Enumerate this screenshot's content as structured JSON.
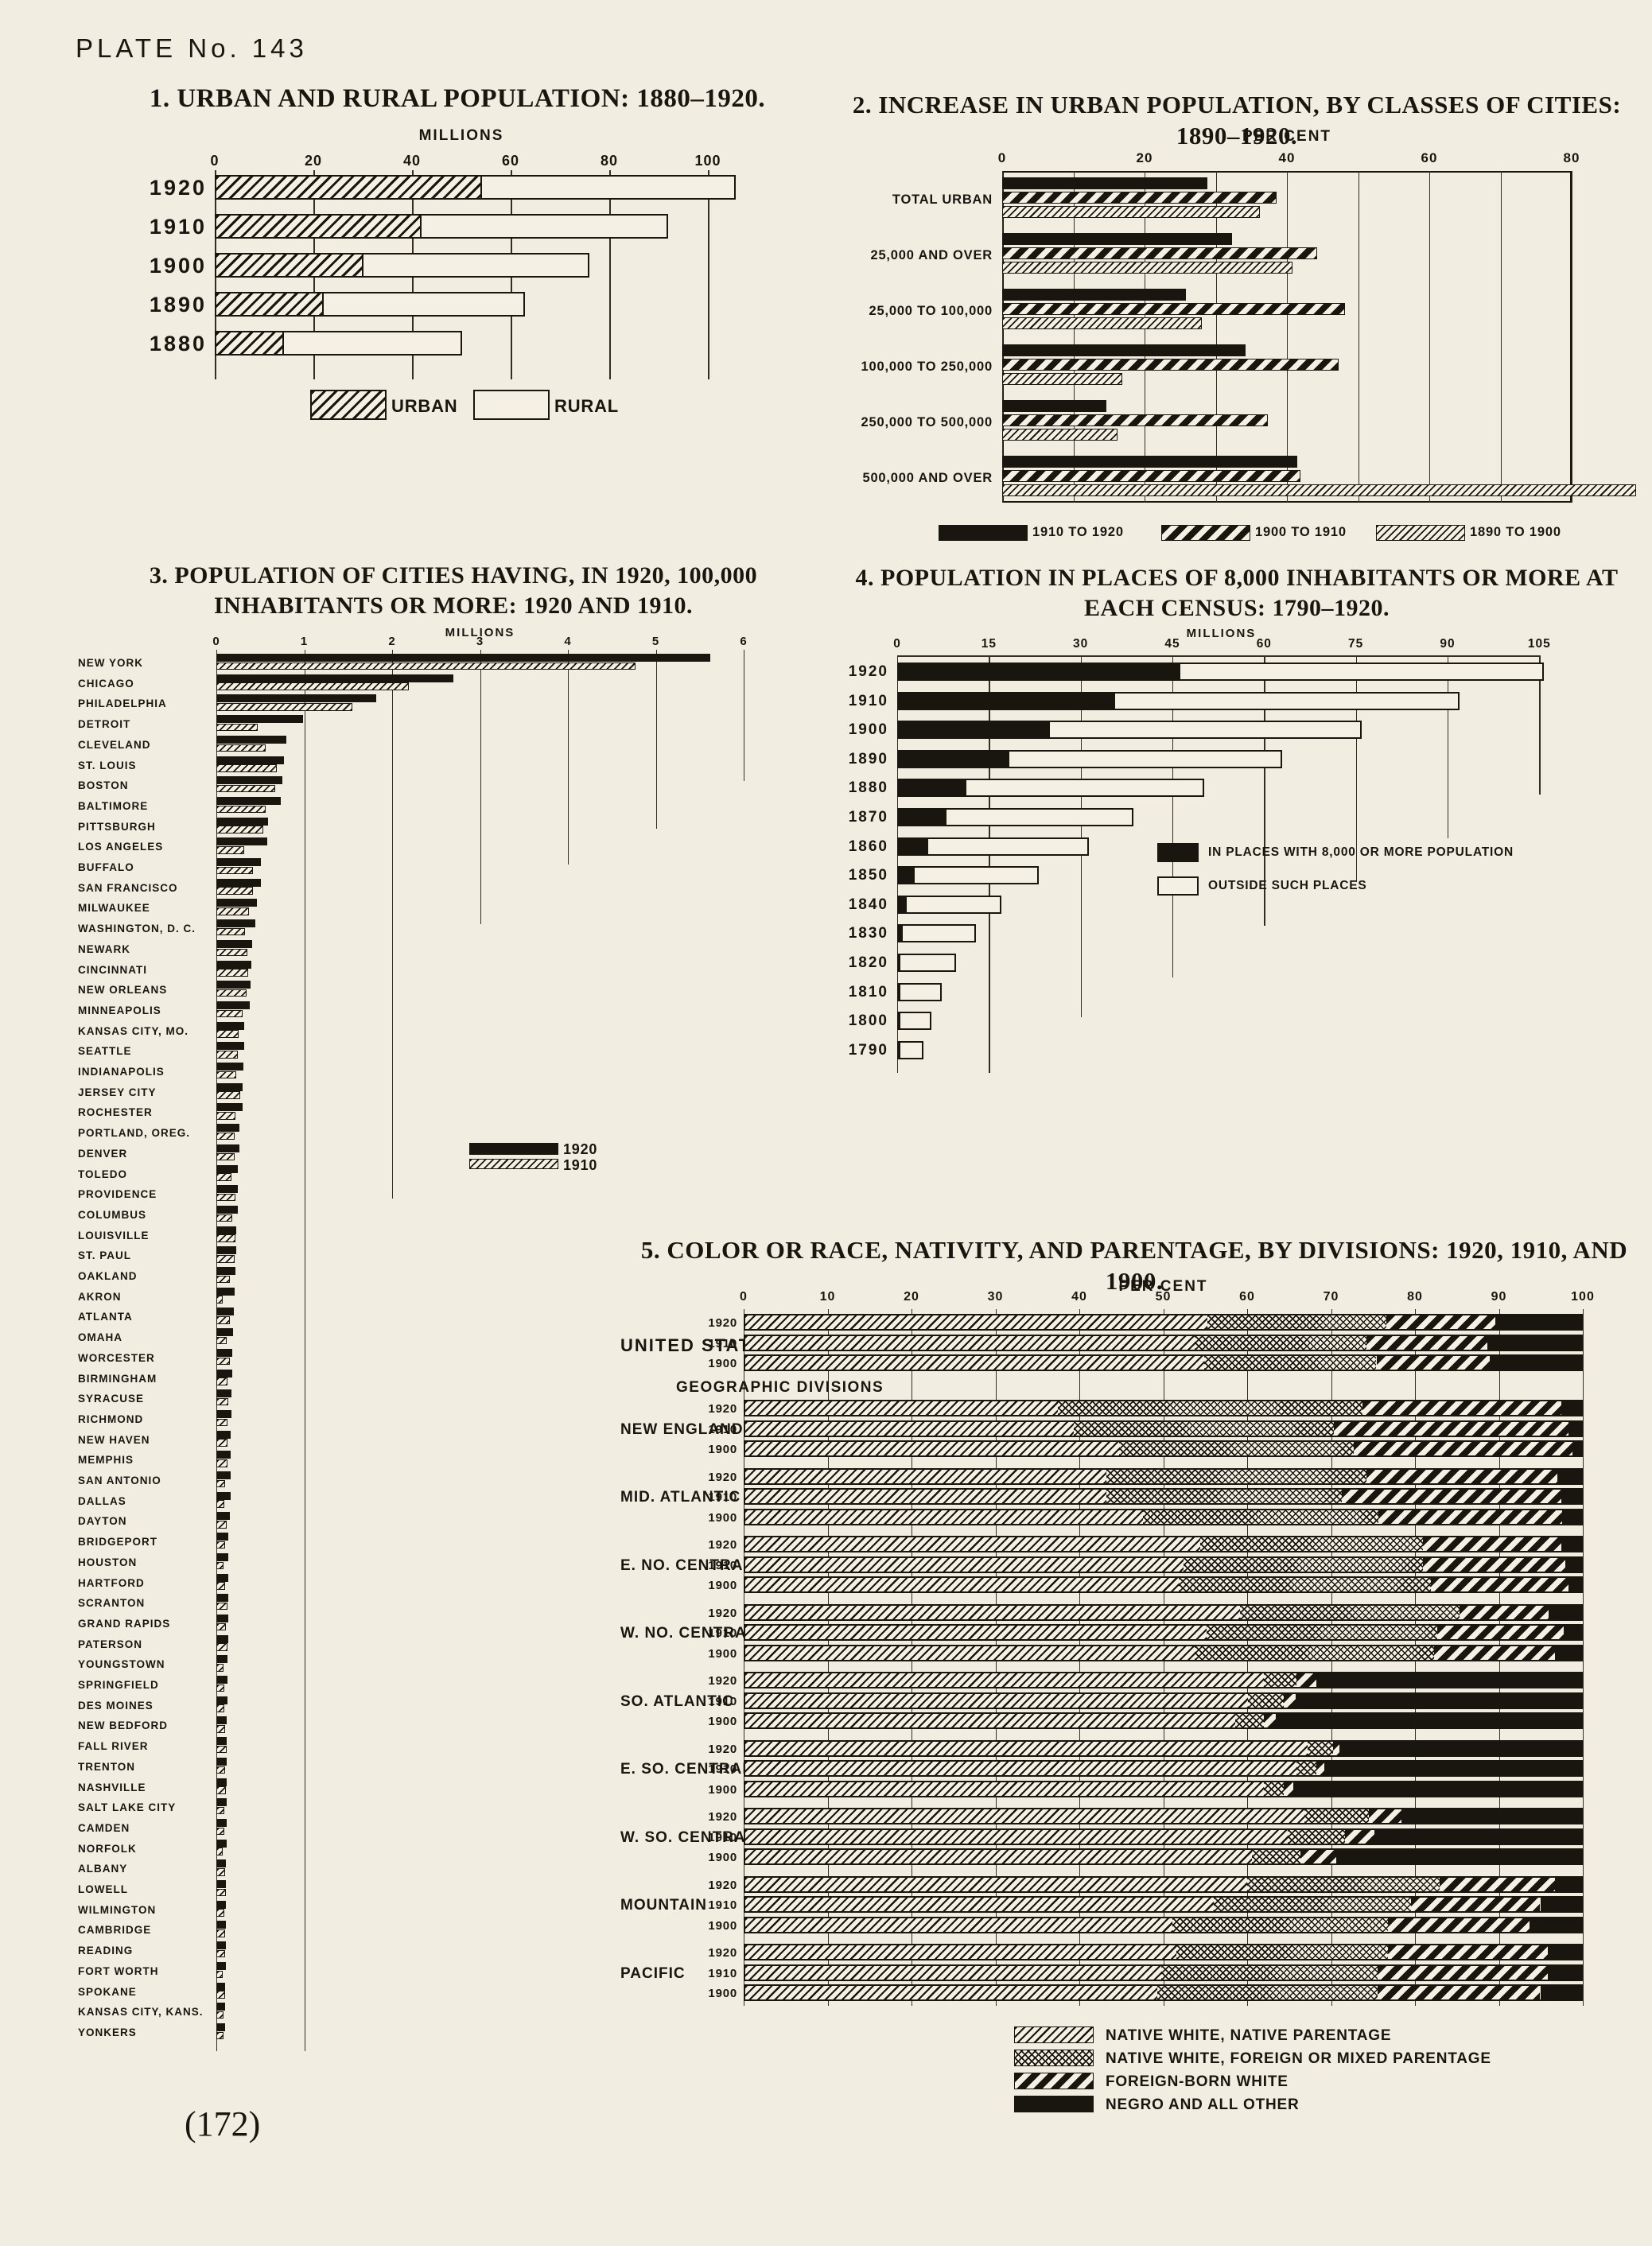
{
  "page": {
    "plate_label": "PLATE No. 143",
    "page_number": "(172)",
    "paper_color": "#f1eee1",
    "ink_color": "#19150f"
  },
  "chart_data": [
    {
      "id": "urban-rural-population",
      "type": "bar",
      "stacked": true,
      "title": "1. URBAN AND RURAL POPULATION: 1880–1920.",
      "axis_title": "MILLIONS",
      "xlim": [
        0,
        106
      ],
      "ticks": [
        0,
        20,
        40,
        60,
        80,
        100
      ],
      "categories": [
        "1920",
        "1910",
        "1900",
        "1890",
        "1880"
      ],
      "series": [
        {
          "name": "URBAN",
          "pattern": "hatch",
          "values": [
            54.2,
            42.0,
            30.2,
            22.1,
            14.1
          ]
        },
        {
          "name": "RURAL",
          "pattern": "open",
          "values": [
            51.5,
            50.0,
            45.8,
            40.8,
            36.0
          ]
        }
      ],
      "legend": [
        {
          "label": "URBAN",
          "pattern": "hatch"
        },
        {
          "label": "RURAL",
          "pattern": "open"
        }
      ]
    },
    {
      "id": "urban-increase-by-city-class",
      "type": "bar",
      "grouped": true,
      "title": "2. INCREASE IN URBAN POPULATION, BY CLASSES OF CITIES: 1890–1920.",
      "axis_title": "PER CENT",
      "xlim": [
        0,
        80
      ],
      "ticks": [
        0,
        20,
        40,
        60,
        80
      ],
      "minor_tick_step": 10,
      "categories": [
        "TOTAL URBAN",
        "25,000 AND OVER",
        "25,000 TO 100,000",
        "100,000 TO 250,000",
        "250,000 TO 500,000",
        "500,000 AND OVER"
      ],
      "series": [
        {
          "name": "1910 TO 1920",
          "pattern": "solid",
          "values": [
            28.8,
            32.3,
            25.8,
            34.2,
            14.6,
            41.5
          ]
        },
        {
          "name": "1900 TO 1910",
          "pattern": "stripe",
          "values": [
            38.5,
            44.2,
            48.2,
            47.3,
            37.3,
            41.9
          ]
        },
        {
          "name": "1890 TO 1900",
          "pattern": "fine",
          "values": [
            36.2,
            40.8,
            28.0,
            16.9,
            16.2,
            89.0
          ]
        }
      ],
      "legend": [
        {
          "label": "1910 TO 1920",
          "pattern": "solid"
        },
        {
          "label": "1900 TO 1910",
          "pattern": "stripe"
        },
        {
          "label": "1890 TO 1900",
          "pattern": "fine"
        }
      ]
    },
    {
      "id": "cities-100000-population",
      "type": "bar",
      "grouped": true,
      "title": "3. POPULATION OF CITIES HAVING, IN 1920, 100,000 INHABITANTS OR MORE: 1920 AND 1910.",
      "axis_title": "MILLIONS",
      "xlim": [
        0,
        6
      ],
      "ticks": [
        0,
        1,
        2,
        3,
        4,
        5,
        6
      ],
      "legend": [
        {
          "label": "1920",
          "pattern": "solid"
        },
        {
          "label": "1910",
          "pattern": "fine"
        }
      ],
      "cities": [
        {
          "name": "NEW YORK",
          "y1920": 5.62,
          "y1910": 4.77
        },
        {
          "name": "CHICAGO",
          "y1920": 2.7,
          "y1910": 2.19
        },
        {
          "name": "PHILADELPHIA",
          "y1920": 1.82,
          "y1910": 1.55
        },
        {
          "name": "DETROIT",
          "y1920": 0.99,
          "y1910": 0.47
        },
        {
          "name": "CLEVELAND",
          "y1920": 0.8,
          "y1910": 0.56
        },
        {
          "name": "ST. LOUIS",
          "y1920": 0.77,
          "y1910": 0.69
        },
        {
          "name": "BOSTON",
          "y1920": 0.75,
          "y1910": 0.67
        },
        {
          "name": "BALTIMORE",
          "y1920": 0.73,
          "y1910": 0.56
        },
        {
          "name": "PITTSBURGH",
          "y1920": 0.59,
          "y1910": 0.53
        },
        {
          "name": "LOS ANGELES",
          "y1920": 0.58,
          "y1910": 0.32
        },
        {
          "name": "BUFFALO",
          "y1920": 0.51,
          "y1910": 0.42
        },
        {
          "name": "SAN FRANCISCO",
          "y1920": 0.51,
          "y1910": 0.42
        },
        {
          "name": "MILWAUKEE",
          "y1920": 0.46,
          "y1910": 0.37
        },
        {
          "name": "WASHINGTON, D. C.",
          "y1920": 0.44,
          "y1910": 0.33
        },
        {
          "name": "NEWARK",
          "y1920": 0.41,
          "y1910": 0.35
        },
        {
          "name": "CINCINNATI",
          "y1920": 0.4,
          "y1910": 0.36
        },
        {
          "name": "NEW ORLEANS",
          "y1920": 0.39,
          "y1910": 0.34
        },
        {
          "name": "MINNEAPOLIS",
          "y1920": 0.38,
          "y1910": 0.3
        },
        {
          "name": "KANSAS CITY, MO.",
          "y1920": 0.32,
          "y1910": 0.25
        },
        {
          "name": "SEATTLE",
          "y1920": 0.32,
          "y1910": 0.24
        },
        {
          "name": "INDIANAPOLIS",
          "y1920": 0.31,
          "y1910": 0.23
        },
        {
          "name": "JERSEY CITY",
          "y1920": 0.3,
          "y1910": 0.27
        },
        {
          "name": "ROCHESTER",
          "y1920": 0.3,
          "y1910": 0.22
        },
        {
          "name": "PORTLAND, OREG.",
          "y1920": 0.26,
          "y1910": 0.21
        },
        {
          "name": "DENVER",
          "y1920": 0.26,
          "y1910": 0.21
        },
        {
          "name": "TOLEDO",
          "y1920": 0.24,
          "y1910": 0.17
        },
        {
          "name": "PROVIDENCE",
          "y1920": 0.24,
          "y1910": 0.22
        },
        {
          "name": "COLUMBUS",
          "y1920": 0.24,
          "y1910": 0.18
        },
        {
          "name": "LOUISVILLE",
          "y1920": 0.23,
          "y1910": 0.22
        },
        {
          "name": "ST. PAUL",
          "y1920": 0.23,
          "y1910": 0.21
        },
        {
          "name": "OAKLAND",
          "y1920": 0.22,
          "y1910": 0.15
        },
        {
          "name": "AKRON",
          "y1920": 0.21,
          "y1910": 0.07
        },
        {
          "name": "ATLANTA",
          "y1920": 0.2,
          "y1910": 0.15
        },
        {
          "name": "OMAHA",
          "y1920": 0.19,
          "y1910": 0.12
        },
        {
          "name": "WORCESTER",
          "y1920": 0.18,
          "y1910": 0.15
        },
        {
          "name": "BIRMINGHAM",
          "y1920": 0.18,
          "y1910": 0.13
        },
        {
          "name": "SYRACUSE",
          "y1920": 0.17,
          "y1910": 0.14
        },
        {
          "name": "RICHMOND",
          "y1920": 0.17,
          "y1910": 0.13
        },
        {
          "name": "NEW HAVEN",
          "y1920": 0.16,
          "y1910": 0.13
        },
        {
          "name": "MEMPHIS",
          "y1920": 0.16,
          "y1910": 0.13
        },
        {
          "name": "SAN ANTONIO",
          "y1920": 0.16,
          "y1910": 0.1
        },
        {
          "name": "DALLAS",
          "y1920": 0.16,
          "y1910": 0.09
        },
        {
          "name": "DAYTON",
          "y1920": 0.15,
          "y1910": 0.12
        },
        {
          "name": "BRIDGEPORT",
          "y1920": 0.14,
          "y1910": 0.1
        },
        {
          "name": "HOUSTON",
          "y1920": 0.14,
          "y1910": 0.08
        },
        {
          "name": "HARTFORD",
          "y1920": 0.14,
          "y1910": 0.1
        },
        {
          "name": "SCRANTON",
          "y1920": 0.14,
          "y1910": 0.13
        },
        {
          "name": "GRAND RAPIDS",
          "y1920": 0.14,
          "y1910": 0.11
        },
        {
          "name": "PATERSON",
          "y1920": 0.14,
          "y1910": 0.13
        },
        {
          "name": "YOUNGSTOWN",
          "y1920": 0.13,
          "y1910": 0.08
        },
        {
          "name": "SPRINGFIELD",
          "y1920": 0.13,
          "y1910": 0.09
        },
        {
          "name": "DES MOINES",
          "y1920": 0.13,
          "y1910": 0.09
        },
        {
          "name": "NEW BEDFORD",
          "y1920": 0.12,
          "y1910": 0.1
        },
        {
          "name": "FALL RIVER",
          "y1920": 0.12,
          "y1910": 0.12
        },
        {
          "name": "TRENTON",
          "y1920": 0.12,
          "y1910": 0.1
        },
        {
          "name": "NASHVILLE",
          "y1920": 0.12,
          "y1910": 0.11
        },
        {
          "name": "SALT LAKE CITY",
          "y1920": 0.12,
          "y1910": 0.09
        },
        {
          "name": "CAMDEN",
          "y1920": 0.12,
          "y1910": 0.09
        },
        {
          "name": "NORFOLK",
          "y1920": 0.12,
          "y1910": 0.07
        },
        {
          "name": "ALBANY",
          "y1920": 0.11,
          "y1910": 0.1
        },
        {
          "name": "LOWELL",
          "y1920": 0.11,
          "y1910": 0.11
        },
        {
          "name": "WILMINGTON",
          "y1920": 0.11,
          "y1910": 0.09
        },
        {
          "name": "CAMBRIDGE",
          "y1920": 0.11,
          "y1910": 0.1
        },
        {
          "name": "READING",
          "y1920": 0.11,
          "y1910": 0.1
        },
        {
          "name": "FORT WORTH",
          "y1920": 0.11,
          "y1910": 0.07
        },
        {
          "name": "SPOKANE",
          "y1920": 0.1,
          "y1910": 0.1
        },
        {
          "name": "KANSAS CITY, KANS.",
          "y1920": 0.1,
          "y1910": 0.08
        },
        {
          "name": "YONKERS",
          "y1920": 0.1,
          "y1910": 0.08
        }
      ]
    },
    {
      "id": "population-places-8000",
      "type": "bar",
      "stacked": true,
      "title": "4. POPULATION IN PLACES OF 8,000 INHABITANTS OR MORE AT EACH CENSUS: 1790–1920.",
      "axis_title": "MILLIONS",
      "xlim": [
        0,
        106
      ],
      "ticks": [
        0,
        15,
        30,
        45,
        60,
        75,
        90,
        105
      ],
      "categories": [
        "1920",
        "1910",
        "1900",
        "1890",
        "1880",
        "1870",
        "1860",
        "1850",
        "1840",
        "1830",
        "1820",
        "1810",
        "1800",
        "1790"
      ],
      "series": [
        {
          "name": "IN PLACES WITH 8,000 OR MORE POPULATION",
          "pattern": "solid",
          "values": [
            46.3,
            35.6,
            25.0,
            18.3,
            11.3,
            8.1,
            5.1,
            2.9,
            1.5,
            0.9,
            0.5,
            0.4,
            0.2,
            0.1
          ]
        },
        {
          "name": "OUTSIDE SUCH PLACES",
          "pattern": "open",
          "values": [
            59.4,
            56.4,
            51.0,
            44.6,
            38.9,
            30.5,
            26.3,
            20.3,
            15.6,
            12.0,
            9.1,
            6.8,
            5.1,
            3.8
          ]
        }
      ],
      "legend": [
        {
          "label": "IN PLACES WITH 8,000 OR MORE POPULATION",
          "pattern": "solid"
        },
        {
          "label": "OUTSIDE SUCH PLACES",
          "pattern": "open"
        }
      ]
    },
    {
      "id": "color-race-nativity-parentage",
      "type": "bar",
      "stacked": true,
      "percent": true,
      "title": "5. COLOR OR RACE, NATIVITY, AND PARENTAGE, BY DIVISIONS: 1920, 1910, AND 1900.",
      "axis_title": "PER CENT",
      "xlim": [
        0,
        100
      ],
      "ticks": [
        0,
        10,
        20,
        30,
        40,
        50,
        60,
        70,
        80,
        90,
        100
      ],
      "divider_label": "GEOGRAPHIC DIVISIONS",
      "segments": [
        "NATIVE WHITE, NATIVE PARENTAGE",
        "NATIVE WHITE, FOREIGN OR MIXED PARENTAGE",
        "FOREIGN-BORN WHITE",
        "NEGRO AND ALL OTHER"
      ],
      "segment_patterns": [
        "hatch5",
        "cross",
        "stripe",
        "solid"
      ],
      "groups": [
        {
          "label": "UNITED STATES",
          "rows": [
            {
              "year": "1920",
              "values": [
                55.3,
                21.4,
                13.0,
                10.3
              ]
            },
            {
              "year": "1910",
              "values": [
                53.8,
                20.5,
                14.5,
                11.2
              ]
            },
            {
              "year": "1900",
              "values": [
                54.9,
                20.6,
                13.6,
                10.9
              ]
            }
          ]
        },
        {
          "label": "NEW ENGLAND",
          "rows": [
            {
              "year": "1920",
              "values": [
                37.4,
                36.4,
                23.8,
                2.4
              ]
            },
            {
              "year": "1910",
              "values": [
                39.3,
                31.1,
                28.1,
                1.5
              ]
            },
            {
              "year": "1900",
              "values": [
                44.7,
                28.1,
                26.2,
                1.0
              ]
            }
          ]
        },
        {
          "label": "MID. ATLANTIC",
          "rows": [
            {
              "year": "1920",
              "values": [
                43.2,
                31.1,
                22.8,
                2.9
              ]
            },
            {
              "year": "1910",
              "values": [
                43.2,
                28.2,
                26.2,
                2.4
              ]
            },
            {
              "year": "1900",
              "values": [
                47.6,
                28.1,
                22.0,
                2.3
              ]
            }
          ]
        },
        {
          "label": "E. NO. CENTRAL",
          "rows": [
            {
              "year": "1920",
              "values": [
                54.4,
                26.7,
                16.5,
                2.4
              ]
            },
            {
              "year": "1910",
              "values": [
                52.4,
                28.7,
                17.0,
                1.9
              ]
            },
            {
              "year": "1900",
              "values": [
                51.9,
                30.1,
                16.5,
                1.5
              ]
            }
          ]
        },
        {
          "label": "W. NO. CENTRAL",
          "rows": [
            {
              "year": "1920",
              "values": [
                59.2,
                26.2,
                10.7,
                3.9
              ]
            },
            {
              "year": "1910",
              "values": [
                55.2,
                27.6,
                15.1,
                2.1
              ]
            },
            {
              "year": "1900",
              "values": [
                53.8,
                28.6,
                14.5,
                3.1
              ]
            }
          ]
        },
        {
          "label": "SO. ATLANTIC",
          "rows": [
            {
              "year": "1920",
              "values": [
                62.0,
                3.9,
                2.4,
                31.7
              ]
            },
            {
              "year": "1910",
              "values": [
                60.1,
                4.3,
                1.4,
                34.2
              ]
            },
            {
              "year": "1900",
              "values": [
                58.6,
                3.4,
                1.5,
                36.5
              ]
            }
          ]
        },
        {
          "label": "E. SO. CENTRAL",
          "rows": [
            {
              "year": "1920",
              "values": [
                67.3,
                3.0,
                0.8,
                28.9
              ]
            },
            {
              "year": "1910",
              "values": [
                65.9,
                2.4,
                1.0,
                30.7
              ]
            },
            {
              "year": "1900",
              "values": [
                62.0,
                2.4,
                1.2,
                34.4
              ]
            }
          ]
        },
        {
          "label": "W. SO. CENTRAL",
          "rows": [
            {
              "year": "1920",
              "values": [
                66.9,
                7.7,
                3.9,
                21.5
              ]
            },
            {
              "year": "1910",
              "values": [
                64.9,
                6.8,
                3.6,
                24.7
              ]
            },
            {
              "year": "1900",
              "values": [
                60.6,
                5.8,
                4.3,
                29.3
              ]
            }
          ]
        },
        {
          "label": "MOUNTAIN",
          "rows": [
            {
              "year": "1920",
              "values": [
                60.0,
                23.1,
                13.8,
                3.1
              ]
            },
            {
              "year": "1910",
              "values": [
                56.0,
                23.6,
                15.5,
                4.9
              ]
            },
            {
              "year": "1900",
              "values": [
                51.1,
                25.8,
                16.9,
                6.2
              ]
            }
          ]
        },
        {
          "label": "PACIFIC",
          "rows": [
            {
              "year": "1920",
              "values": [
                51.6,
                25.3,
                19.1,
                4.0
              ]
            },
            {
              "year": "1910",
              "values": [
                49.8,
                25.8,
                20.4,
                4.0
              ]
            },
            {
              "year": "1900",
              "values": [
                49.3,
                26.3,
                19.5,
                4.9
              ]
            }
          ]
        }
      ],
      "legend": [
        {
          "label": "NATIVE WHITE, NATIVE PARENTAGE",
          "pattern": "hatch5"
        },
        {
          "label": "NATIVE WHITE, FOREIGN OR MIXED PARENTAGE",
          "pattern": "cross"
        },
        {
          "label": "FOREIGN-BORN WHITE",
          "pattern": "stripe"
        },
        {
          "label": "NEGRO AND ALL OTHER",
          "pattern": "solid"
        }
      ]
    }
  ]
}
